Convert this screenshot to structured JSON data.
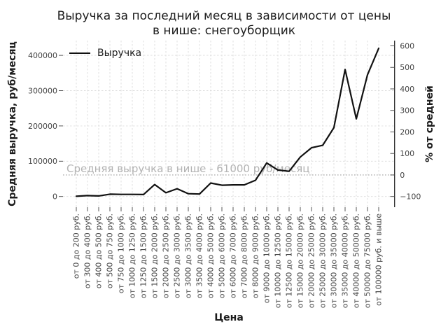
{
  "chart_data": {
    "type": "line",
    "title_line1": "Выручка за последний месяц в зависимости от цены",
    "title_line2": "в нише: снегоуборщик",
    "xlabel": "Цена",
    "ylabel_left": "Средняя выручка, руб/месяц",
    "ylabel_right": "% от средней",
    "legend": {
      "label": "Выручка",
      "position": "upper left"
    },
    "categories": [
      "от 0 до 200 руб.",
      "от 300 до 400 руб.",
      "от 400 до 500 руб.",
      "от 500 до 750 руб.",
      "от 750 до 1000 руб.",
      "от 1000 до 1250 руб.",
      "от 1250 до 1500 руб.",
      "от 1500 до 2000 руб.",
      "от 2000 до 2500 руб.",
      "от 2500 до 3000 руб.",
      "от 3000 до 3500 руб.",
      "от 3500 до 4000 руб.",
      "от 4000 до 5000 руб.",
      "от 5000 до 6000 руб.",
      "от 6000 до 7000 руб.",
      "от 7000 до 8000 руб.",
      "от 8000 до 9000 руб.",
      "от 9000 до 10000 руб.",
      "от 10000 до 12500 руб.",
      "от 12500 до 15000 руб.",
      "от 15000 до 20000 руб.",
      "от 20000 до 25000 руб.",
      "от 25000 до 30000 руб.",
      "от 30000 до 35000 руб.",
      "от 35000 до 40000 руб.",
      "от 40000 до 50000 руб.",
      "от 50000 до 75000 руб.",
      "от 100000 руб. и выше"
    ],
    "series": [
      {
        "name": "Выручка",
        "color": "#111111",
        "values": [
          500,
          2500,
          1500,
          6500,
          6000,
          6000,
          5500,
          34000,
          10500,
          22000,
          8000,
          7000,
          38000,
          32000,
          33000,
          33000,
          46000,
          95000,
          75000,
          71500,
          112000,
          138000,
          145000,
          195000,
          360000,
          220000,
          345000,
          420000
        ]
      }
    ],
    "annotation": {
      "text": "Средняя выручка в нише - 61000 руб/месяц",
      "value": 61000
    },
    "y_left_ticks": [
      0,
      100000,
      200000,
      300000,
      400000
    ],
    "y_right_ticks": [
      -100,
      0,
      100,
      200,
      300,
      400,
      500,
      600
    ],
    "ylim_left": [
      -34000,
      446000
    ],
    "ylim_right": [
      -150,
      625
    ],
    "grid": true,
    "colors": {
      "line": "#111111",
      "grid": "#dcdcdc",
      "average_line": "#b0b0b0",
      "annotation_text": "#b3b3b3",
      "tick_text": "#444444",
      "spine": "#2b2b2b"
    }
  }
}
